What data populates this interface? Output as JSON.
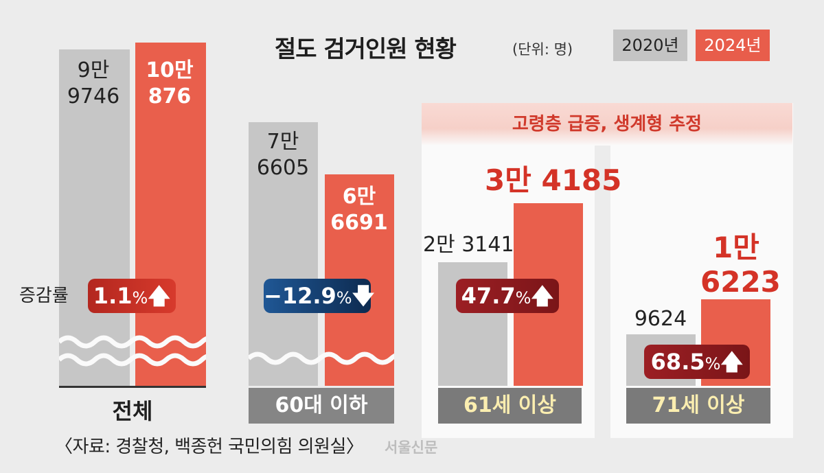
{
  "title": "절도 검거인원 현황",
  "unit": "(단위: 명)",
  "legend": {
    "y2020": "2020년",
    "y2024": "2024년"
  },
  "highlight": "고령층 급증, 생계형 추정",
  "rate_label": "증감률",
  "source": "〈자료: 경찰청, 백종헌 국민의힘 의원실〉",
  "logo": "서울신문",
  "colors": {
    "y2020": "#c6c6c6",
    "y2024": "#e95f4c",
    "accent": "#d43327"
  },
  "chart_data": {
    "type": "bar",
    "categories": [
      "전체",
      "60대 이하",
      "61세 이상",
      "71세 이상"
    ],
    "series": [
      {
        "name": "2020년",
        "values": [
          99746,
          76605,
          23141,
          9624
        ]
      },
      {
        "name": "2024년",
        "values": [
          100876,
          66691,
          34185,
          16223
        ]
      }
    ],
    "value_labels": {
      "y2020": [
        [
          "9만",
          "9746"
        ],
        [
          "7만",
          "6605"
        ],
        [
          "2만 3141"
        ],
        [
          "9624"
        ]
      ],
      "y2024": [
        [
          "10만",
          "876"
        ],
        [
          "6만",
          "6691"
        ],
        [
          "3만 4185"
        ],
        [
          "1만",
          "6223"
        ]
      ]
    },
    "change_rates": [
      {
        "value": "1.1",
        "pct": "%",
        "arrow": "🡅",
        "direction": "up"
      },
      {
        "value": "−12.9",
        "pct": "%",
        "arrow": "🡇",
        "direction": "down"
      },
      {
        "value": "47.7",
        "pct": "%",
        "arrow": "🡅",
        "direction": "up"
      },
      {
        "value": "68.5",
        "pct": "%",
        "arrow": "🡅",
        "direction": "up"
      }
    ],
    "axis_break": "first two groups"
  }
}
